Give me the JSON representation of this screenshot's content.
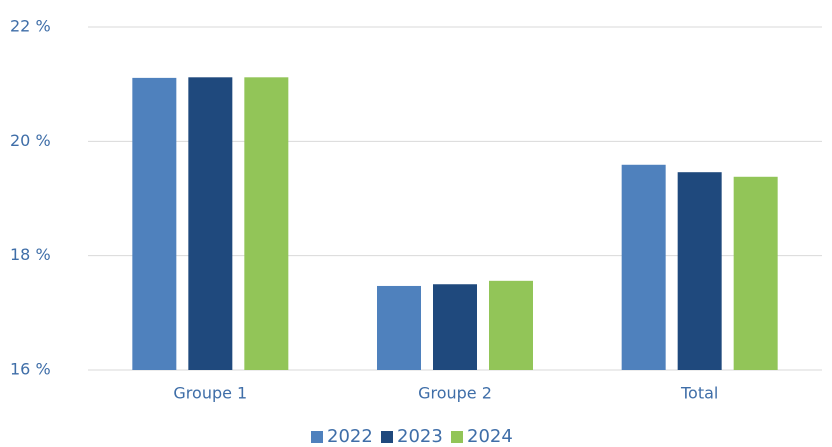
{
  "chart_data": {
    "type": "bar",
    "categories": [
      "Groupe 1",
      "Groupe 2",
      "Total"
    ],
    "series": [
      {
        "name": "2022",
        "color": "#4f81bd",
        "values": [
          21.11,
          17.47,
          19.59
        ]
      },
      {
        "name": "2023",
        "color": "#1f497d",
        "values": [
          21.12,
          17.5,
          19.46
        ]
      },
      {
        "name": "2024",
        "color": "#92c558",
        "values": [
          21.12,
          17.56,
          19.38
        ]
      }
    ],
    "ylim": [
      16,
      22
    ],
    "yticks": [
      {
        "value": 16,
        "label": "16 %"
      },
      {
        "value": 18,
        "label": "18 %"
      },
      {
        "value": 20,
        "label": "20 %"
      },
      {
        "value": 22,
        "label": "22 %"
      }
    ],
    "grid": true,
    "legend": "bottom"
  }
}
